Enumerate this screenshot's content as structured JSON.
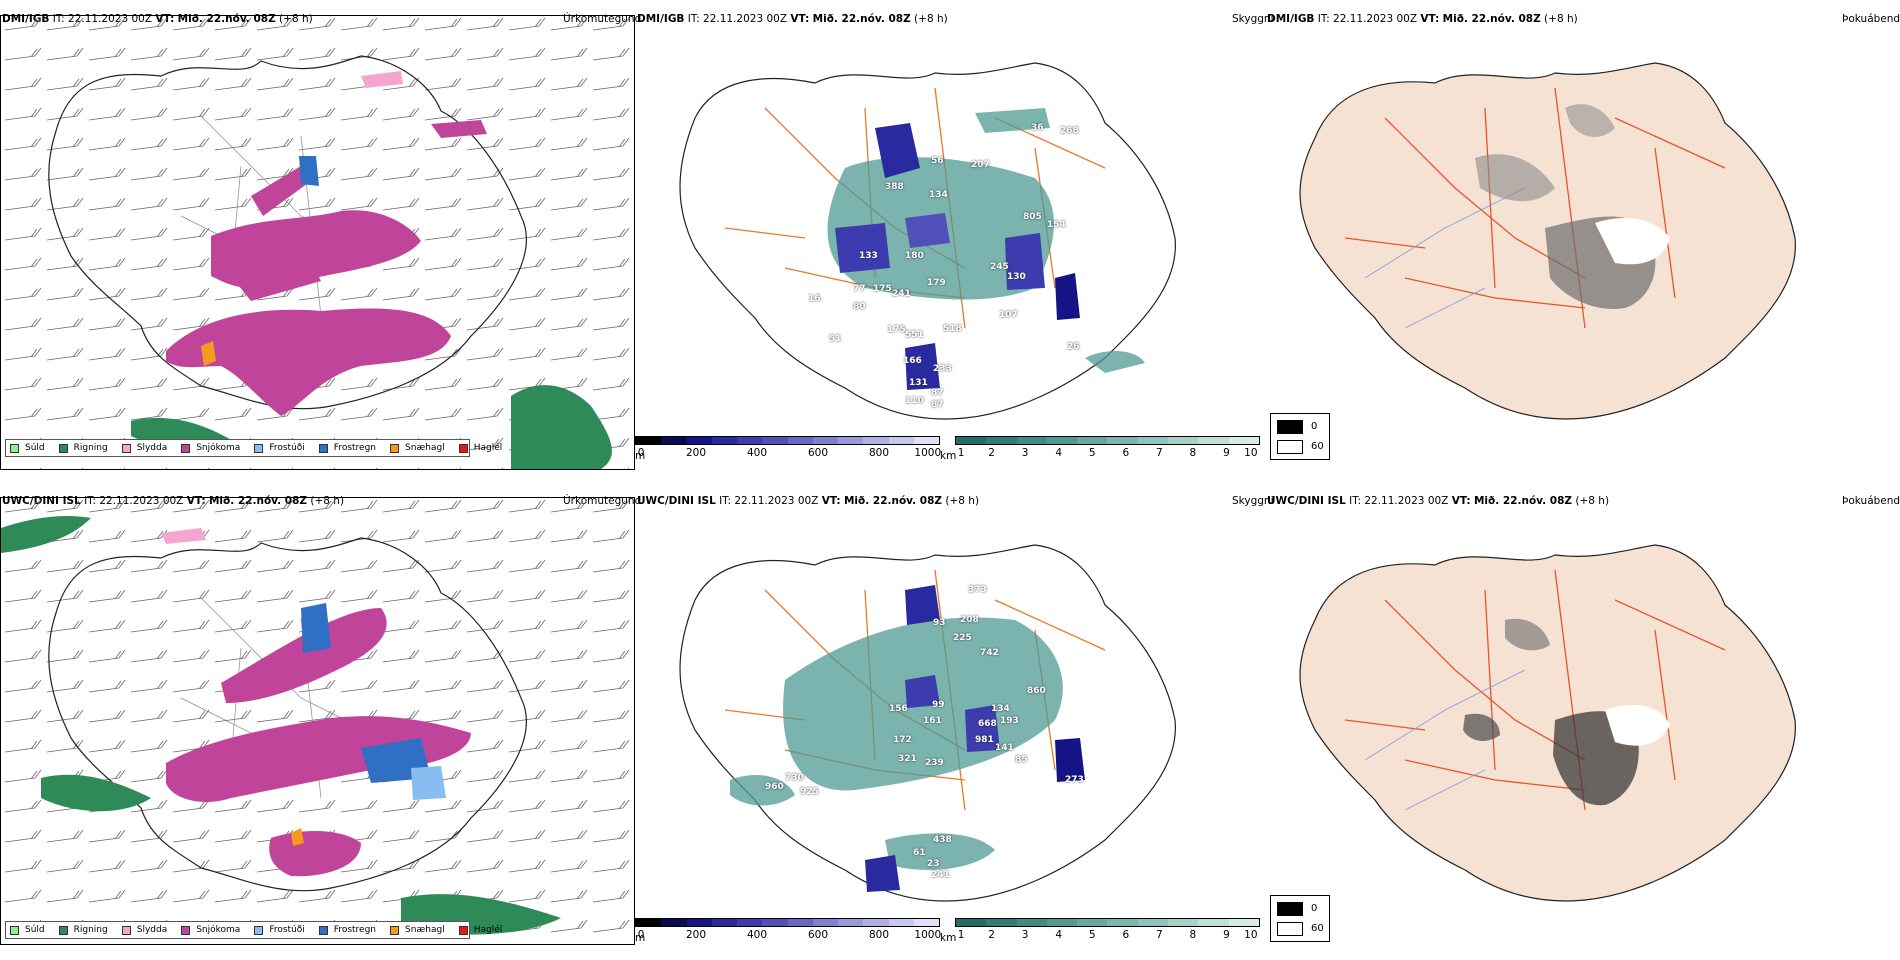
{
  "rows": [
    {
      "model": "DMI/IGB",
      "init": "IT: 22.11.2023 00Z",
      "valid_label": "VT:",
      "valid": "Mið. 22.nóv. 08Z",
      "lead": "(+8 h)",
      "precip_title": "Úrkomutegund",
      "vis_title": "Skyggni",
      "fog_title": "Þokuábendi",
      "cloud_labels": [
        "268",
        "36",
        "56",
        "207",
        "388",
        "134",
        "805",
        "154",
        "133",
        "180",
        "245",
        "130",
        "77",
        "175",
        "241",
        "179",
        "16",
        "80",
        "107",
        "175",
        "551",
        "518",
        "51",
        "166",
        "233",
        "131",
        "87",
        "110",
        "87",
        "26"
      ]
    },
    {
      "model": "UWC/DINI ISL",
      "init": "IT: 22.11.2023 00Z",
      "valid_label": "VT:",
      "valid": "Mið. 22.nóv. 08Z",
      "lead": "(+8 h)",
      "precip_title": "Úrkomutegund",
      "vis_title": "Skyggni",
      "fog_title": "Þokuábendi",
      "cloud_labels": [
        "373",
        "208",
        "93",
        "225",
        "742",
        "860",
        "99",
        "134",
        "156",
        "161",
        "668",
        "193",
        "172",
        "981",
        "141",
        "321",
        "239",
        "85",
        "273",
        "730",
        "960",
        "925",
        "438",
        "61",
        "23",
        "241"
      ]
    }
  ],
  "precip_legend": [
    {
      "label": "Súld",
      "color": "#90ee90"
    },
    {
      "label": "Rigning",
      "color": "#2e8b57"
    },
    {
      "label": "Slydda",
      "color": "#f4a6d0"
    },
    {
      "label": "Snjókoma",
      "color": "#c0449a"
    },
    {
      "label": "Frostúði",
      "color": "#87bdf0"
    },
    {
      "label": "Frostregn",
      "color": "#2f6fc4"
    },
    {
      "label": "Snæhagl",
      "color": "#f59a1c"
    },
    {
      "label": "Haglél",
      "color": "#e31a1c"
    }
  ],
  "cloud_base_scale": {
    "unit": "m",
    "ticks": [
      "0",
      "200",
      "400",
      "600",
      "800",
      "1000"
    ],
    "colors": [
      "#000000",
      "#0a0a50",
      "#141486",
      "#2a2aa0",
      "#3c3cae",
      "#5050b8",
      "#6868c4",
      "#8080d0",
      "#9898da",
      "#b0b0e4",
      "#c8c8ee",
      "#e0e0f8"
    ]
  },
  "visibility_scale": {
    "unit": "km",
    "ticks": [
      "1",
      "2",
      "3",
      "4",
      "5",
      "6",
      "7",
      "8",
      "9",
      "10"
    ],
    "colors": [
      "#1f6e6a",
      "#2f7d78",
      "#3f8c86",
      "#4f9a94",
      "#63a8a2",
      "#78b6b0",
      "#8ec4be",
      "#a6d2cc",
      "#bedfda",
      "#d6ece8"
    ]
  },
  "fog_scale": {
    "ticks": [
      "0",
      "60"
    ],
    "colors": [
      "#000000",
      "#ffffff"
    ]
  }
}
